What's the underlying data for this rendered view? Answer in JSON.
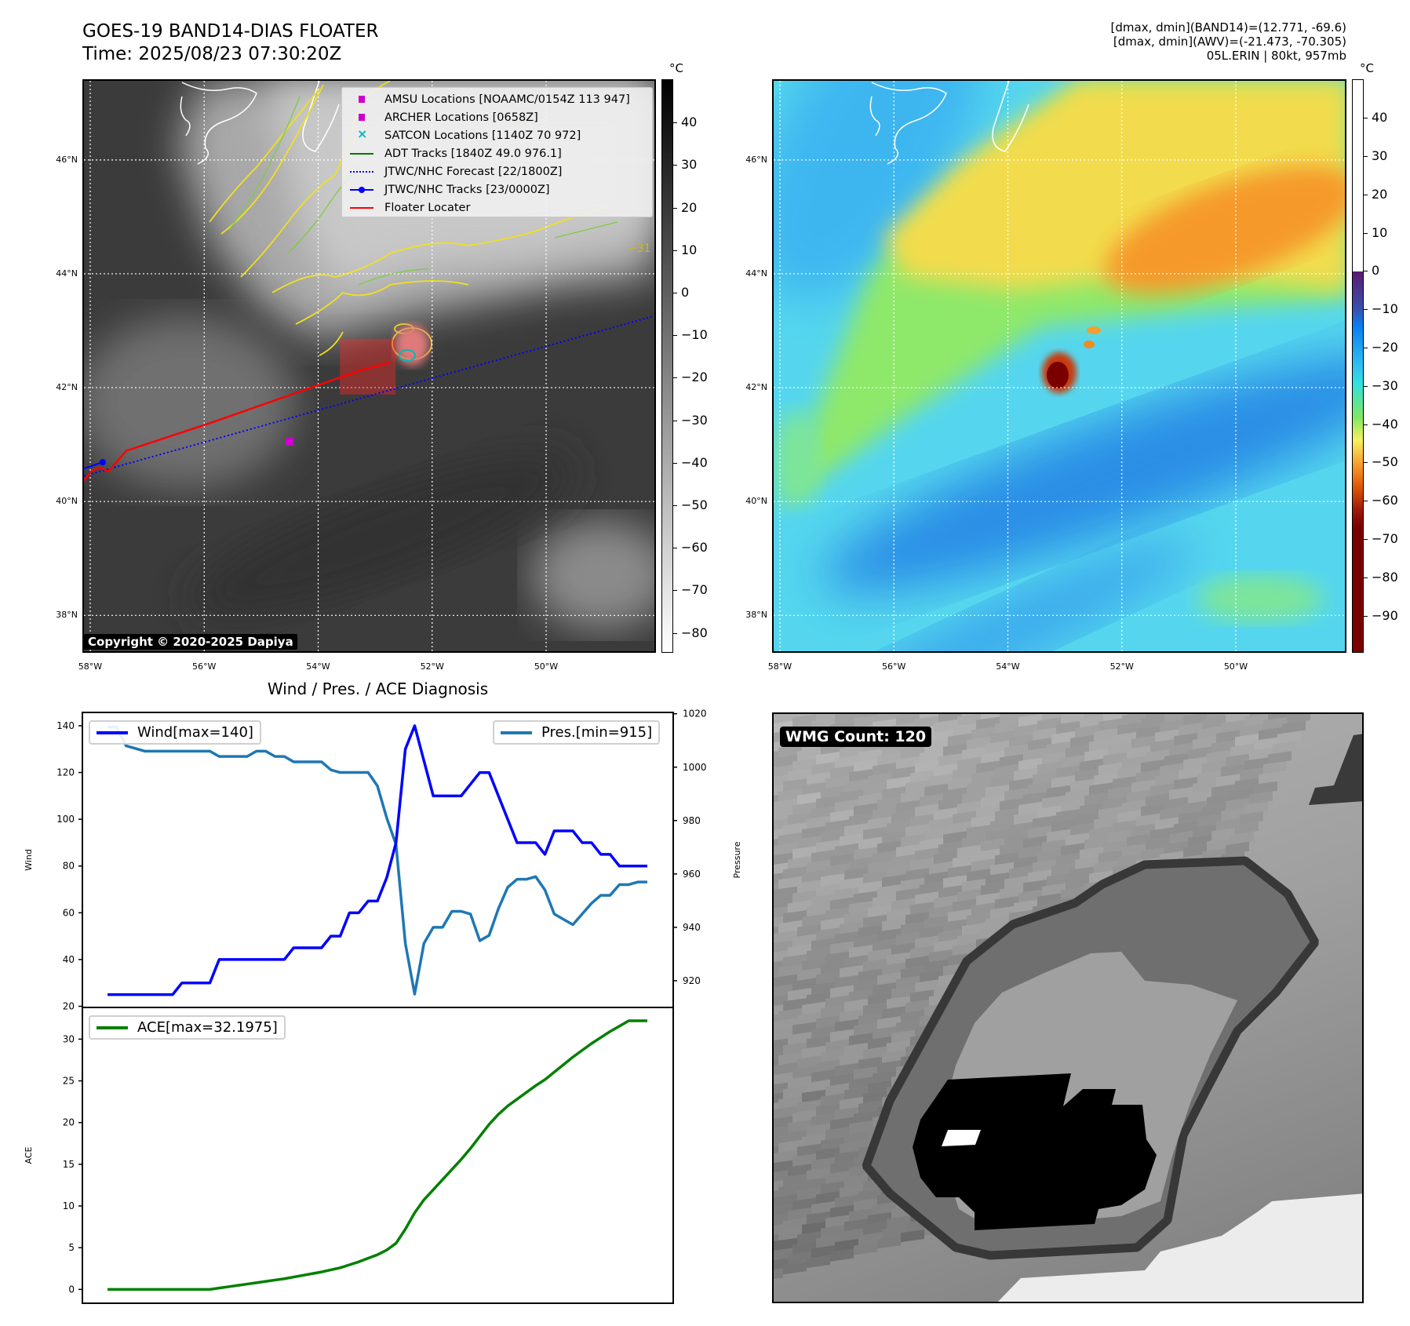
{
  "header": {
    "title": "GOES-19 BAND14-DIAS FLOATER",
    "time": "Time: 2025/08/23 07:30:20Z",
    "info_band14": "[dmax, dmin](BAND14)=(12.771, -69.6)",
    "info_awv": "[dmax, dmin](AWV)=(-21.473, -70.305)",
    "info_storm": "05L.ERIN | 80kt, 957mb"
  },
  "maps": {
    "lon_range": [
      -58.11,
      -48.1
    ],
    "lat_range": [
      37.37,
      47.39
    ],
    "lon_ticks": [
      {
        "v": -58,
        "label": "58°W"
      },
      {
        "v": -56,
        "label": "56°W"
      },
      {
        "v": -54,
        "label": "54°W"
      },
      {
        "v": -52,
        "label": "52°W"
      },
      {
        "v": -50,
        "label": "50°W"
      }
    ],
    "lat_ticks": [
      {
        "v": 46,
        "label": "46°N"
      },
      {
        "v": 44,
        "label": "44°N"
      },
      {
        "v": 42,
        "label": "42°N"
      },
      {
        "v": 40,
        "label": "40°N"
      },
      {
        "v": 38,
        "label": "38°N"
      }
    ],
    "unit": "°C",
    "contour_label": "−31",
    "copyright": "Copyright © 2020-2025 Dapiya",
    "legend": [
      {
        "label": "AMSU Locations [NOAAMC/0154Z 113 947]",
        "color": "#cc00cc",
        "icon": "square-marker"
      },
      {
        "label": "ARCHER Locations [0658Z]",
        "color": "#cc00cc",
        "icon": "square-marker"
      },
      {
        "label": "SATCON Locations [1140Z 70 972]",
        "color": "#00bbbb",
        "icon": "x-marker"
      },
      {
        "label": "ADT Tracks [1840Z 49.0 976.1]",
        "color": "#007700",
        "icon": "line"
      },
      {
        "label": "JTWC/NHC Forecast [22/1800Z]",
        "color": "#0000ff",
        "icon": "dotted-line"
      },
      {
        "label": "JTWC/NHC Tracks [23/0000Z]",
        "color": "#0000ff",
        "icon": "line-dot"
      },
      {
        "label": "Floater Locater",
        "color": "#ff0000",
        "icon": "line"
      }
    ],
    "floater_track": [
      [
        -58.11,
        40.37
      ],
      [
        -57.97,
        40.54
      ],
      [
        -57.84,
        40.6
      ],
      [
        -57.68,
        40.53
      ],
      [
        -57.37,
        40.89
      ],
      [
        -55.92,
        41.37
      ],
      [
        -53.24,
        42.31
      ],
      [
        -52.74,
        42.44
      ]
    ],
    "forecast_track": [
      [
        -58.11,
        40.45
      ],
      [
        -48.1,
        43.26
      ]
    ],
    "nhc_track": [
      [
        -58.11,
        40.58
      ],
      [
        -57.78,
        40.69
      ]
    ],
    "amsu_point": [
      -54.5,
      41.05
    ],
    "floater_box": {
      "lon": [
        -53.62,
        -52.64
      ],
      "lat": [
        41.88,
        42.86
      ]
    },
    "colorbar1": {
      "range": [
        -84.7,
        50.2
      ],
      "ticks": [
        40,
        30,
        20,
        10,
        0,
        -10,
        -20,
        -30,
        -40,
        -50,
        -60,
        -70,
        -80
      ],
      "tick_labels": [
        "40",
        "30",
        "20",
        "10",
        "0",
        "−10",
        "−20",
        "−30",
        "−40",
        "−50",
        "−60",
        "−70",
        "−80"
      ]
    },
    "colorbar2": {
      "range": [
        -99.7,
        50.1
      ],
      "ticks": [
        40,
        30,
        20,
        10,
        0,
        -10,
        -20,
        -30,
        -40,
        -50,
        -60,
        -70,
        -80,
        -90
      ],
      "tick_labels": [
        "40",
        "30",
        "20",
        "10",
        "0",
        "−10",
        "−20",
        "−30",
        "−40",
        "−50",
        "−60",
        "−70",
        "−80",
        "−90"
      ]
    }
  },
  "chart_data": {
    "type": "line",
    "title": "Wind / Pres. / ACE Diagnosis",
    "x": [
      0,
      1,
      2,
      3,
      4,
      5,
      6,
      7,
      8,
      9,
      10,
      11,
      12,
      13,
      14,
      15,
      16,
      17,
      18,
      19,
      20,
      21,
      22,
      23,
      24,
      25,
      26,
      27,
      28,
      29,
      30,
      31,
      32,
      33,
      34,
      35,
      36,
      37,
      38,
      39,
      40,
      41,
      42,
      43,
      44,
      45,
      46,
      47,
      48,
      49,
      50,
      51,
      52,
      53,
      54,
      55,
      56,
      57,
      58
    ],
    "series": [
      {
        "name": "Wind",
        "legend": "Wind[max=140]",
        "color": "#0000ff",
        "axis": "left",
        "values": [
          25,
          25,
          25,
          25,
          25,
          25,
          25,
          25,
          30,
          30,
          30,
          30,
          40,
          40,
          40,
          40,
          40,
          40,
          40,
          40,
          45,
          45,
          45,
          45,
          50,
          50,
          60,
          60,
          65,
          65,
          75,
          90,
          130,
          140,
          125,
          110,
          110,
          110,
          110,
          115,
          120,
          120,
          110,
          100,
          90,
          90,
          90,
          85,
          95,
          95,
          95,
          90,
          90,
          85,
          85,
          80,
          80,
          80,
          80
        ]
      },
      {
        "name": "Pres.",
        "legend": "Pres.[min=915]",
        "color": "#1f77b4",
        "axis": "right",
        "values": [
          1015,
          1015,
          1008,
          1007,
          1006,
          1006,
          1006,
          1006,
          1006,
          1006,
          1006,
          1006,
          1004,
          1004,
          1004,
          1004,
          1006,
          1006,
          1004,
          1004,
          1002,
          1002,
          1002,
          1002,
          999,
          998,
          998,
          998,
          998,
          993,
          981,
          971,
          934,
          915,
          934,
          940,
          940,
          946,
          946,
          945,
          935,
          937,
          947,
          955,
          958,
          958,
          959,
          954,
          945,
          943,
          941,
          945,
          949,
          952,
          952,
          956,
          956,
          957,
          957
        ]
      },
      {
        "name": "ACE",
        "legend": "ACE[max=32.1975]",
        "color": "#008000",
        "axis": "ace",
        "values": [
          0,
          0,
          0,
          0,
          0,
          0,
          0,
          0,
          0,
          0,
          0,
          0,
          0.16,
          0.32,
          0.48,
          0.64,
          0.8,
          0.96,
          1.12,
          1.28,
          1.4825,
          1.685,
          1.8875,
          2.09,
          2.34,
          2.59,
          2.95,
          3.31,
          3.7325,
          4.155,
          4.7175,
          5.5275,
          7.2175,
          9.1775,
          10.74,
          11.95,
          13.16,
          14.37,
          15.58,
          16.9025,
          18.3425,
          19.7825,
          20.9925,
          21.9925,
          22.8025,
          23.6125,
          24.4225,
          25.145,
          26.0475,
          26.95,
          27.8525,
          28.6625,
          29.4725,
          30.195,
          30.9175,
          31.5575,
          32.1975,
          32.1975,
          32.1975
        ]
      }
    ],
    "wind_axis": {
      "label": "Wind",
      "ylim": [
        19.5,
        145.7
      ],
      "ticks": [
        20,
        40,
        60,
        80,
        100,
        120,
        140
      ]
    },
    "pres_axis": {
      "label": "Pressure",
      "ylim": [
        910,
        1020.5
      ],
      "ticks": [
        920,
        940,
        960,
        980,
        1000,
        1020
      ]
    },
    "ace_axis": {
      "label": "ACE",
      "ylim": [
        -1.66,
        33.8
      ],
      "ticks": [
        0,
        5,
        10,
        15,
        20,
        25,
        30
      ]
    },
    "legend_placement": [
      "upper-left",
      "upper-right",
      "upper-left"
    ]
  },
  "wmg": {
    "label": "WMG Count: 120"
  }
}
